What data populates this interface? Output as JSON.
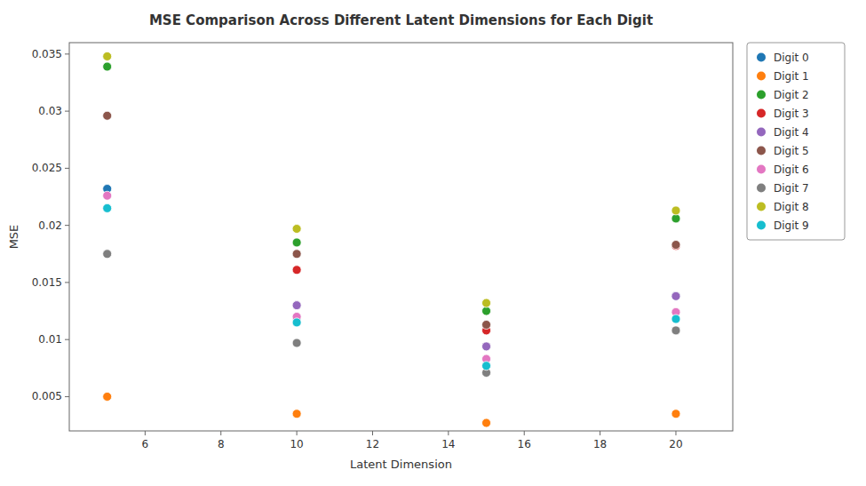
{
  "chart_data": {
    "type": "scatter",
    "title": "MSE Comparison Across Different Latent Dimensions for Each Digit",
    "xlabel": "Latent Dimension",
    "ylabel": "MSE",
    "x": [
      5,
      10,
      15,
      20
    ],
    "series": [
      {
        "name": "Digit 0",
        "color": "#1f77b4",
        "values": [
          0.0232,
          null,
          null,
          0.0138
        ]
      },
      {
        "name": "Digit 1",
        "color": "#ff7f0e",
        "values": [
          0.005,
          0.0035,
          0.0027,
          0.0035
        ]
      },
      {
        "name": "Digit 2",
        "color": "#2ca02c",
        "values": [
          0.0339,
          0.0185,
          0.0125,
          0.0206
        ]
      },
      {
        "name": "Digit 3",
        "color": "#d62728",
        "values": [
          null,
          0.0161,
          0.0108,
          0.0182
        ]
      },
      {
        "name": "Digit 4",
        "color": "#9467bd",
        "values": [
          null,
          0.013,
          0.0094,
          0.0138
        ]
      },
      {
        "name": "Digit 5",
        "color": "#8c564b",
        "values": [
          0.0296,
          0.0175,
          0.0113,
          0.0183
        ]
      },
      {
        "name": "Digit 6",
        "color": "#e377c2",
        "values": [
          0.0226,
          0.012,
          0.0083,
          0.0124
        ]
      },
      {
        "name": "Digit 7",
        "color": "#7f7f7f",
        "values": [
          0.0175,
          0.0097,
          0.0071,
          0.0108
        ]
      },
      {
        "name": "Digit 8",
        "color": "#bcbd22",
        "values": [
          0.0348,
          0.0197,
          0.0132,
          0.0213
        ]
      },
      {
        "name": "Digit 9",
        "color": "#17becf",
        "values": [
          0.0215,
          0.0115,
          0.0077,
          0.0118
        ]
      }
    ],
    "xlim": [
      4.0,
      21.5
    ],
    "ylim": [
      0.002,
      0.036
    ],
    "xticks": [
      6,
      8,
      10,
      12,
      14,
      16,
      18,
      20
    ],
    "yticks": [
      0.005,
      0.01,
      0.015,
      0.02,
      0.025,
      0.03,
      0.035
    ],
    "grid": false,
    "legend": "right"
  }
}
